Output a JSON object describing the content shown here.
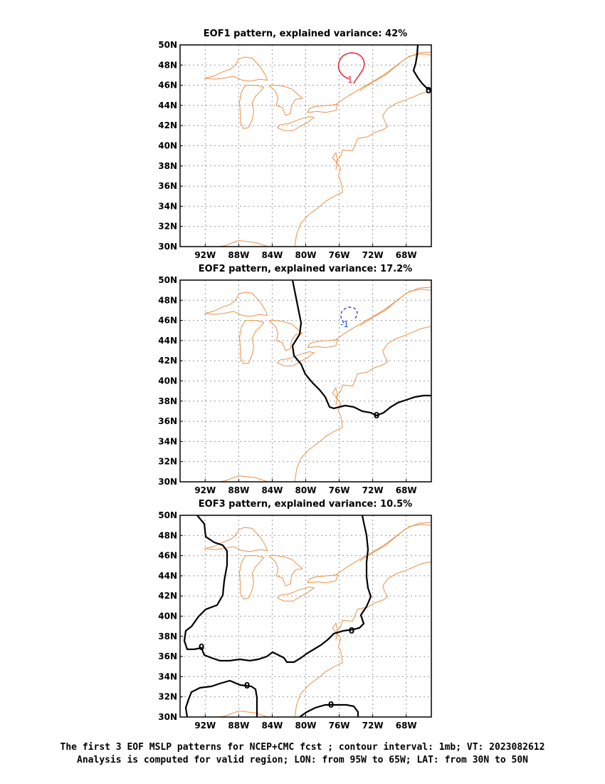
{
  "panels": [
    {
      "title": "EOF1 pattern, explained variance: 42%",
      "contours": [
        {
          "label": "1",
          "color": "#e8303a",
          "dash": false,
          "kind": "closed"
        },
        {
          "label": "0",
          "color": "#000000",
          "dash": false,
          "kind": "zero"
        }
      ]
    },
    {
      "title": "EOF2 pattern, explained variance: 17.2%",
      "contours": [
        {
          "label": "-1",
          "color": "#2c52e8",
          "dash": true,
          "kind": "closed"
        },
        {
          "label": "0",
          "color": "#000000",
          "dash": false,
          "kind": "zero"
        }
      ]
    },
    {
      "title": "EOF3 pattern, explained variance: 10.5%",
      "contours": [
        {
          "label": "0",
          "color": "#000000",
          "dash": false,
          "kind": "zero"
        }
      ]
    }
  ],
  "map": {
    "lat_ticks": [
      "50N",
      "48N",
      "46N",
      "44N",
      "42N",
      "40N",
      "38N",
      "36N",
      "34N",
      "32N",
      "30N"
    ],
    "lon_ticks": [
      "92W",
      "88W",
      "84W",
      "80W",
      "76W",
      "72W",
      "68W"
    ],
    "lon_range": [
      -95,
      -65
    ],
    "lat_range": [
      30,
      50
    ],
    "coast_color": "#e8924a",
    "grid": "dotted"
  },
  "caption": {
    "line1": "The first 3 EOF MSLP patterns for NCEP+CMC fcst ; contour interval: 1mb; VT: 2023082612",
    "line2": "Analysis is computed for valid region; LON: from 95W to 65W; LAT: from 30N to 50N"
  }
}
